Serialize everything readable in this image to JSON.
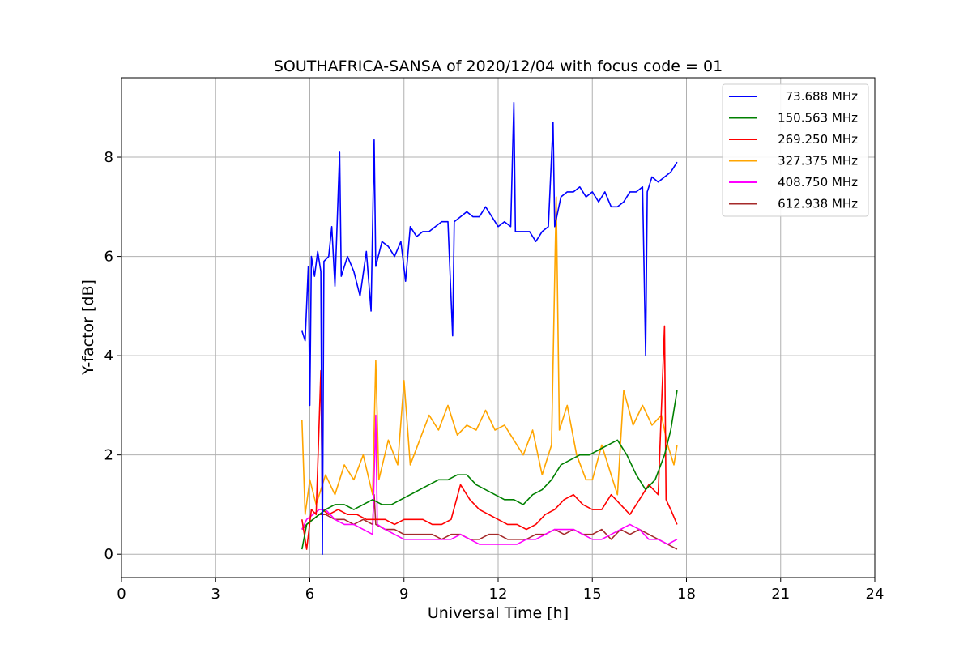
{
  "chart_data": {
    "type": "line",
    "title": "SOUTHAFRICA-SANSA of 2020/12/04 with focus code = 01",
    "xlabel": "Universal Time [h]",
    "ylabel": "Y-factor [dB]",
    "xlim": [
      0,
      24
    ],
    "ylim": [
      -0.47,
      9.6
    ],
    "xticks": [
      0,
      3,
      6,
      9,
      12,
      15,
      18,
      21,
      24
    ],
    "yticks": [
      0,
      2,
      4,
      6,
      8
    ],
    "grid": true,
    "legend_position": "top-right",
    "series": [
      {
        "name": "73.688 MHz",
        "color": "#0000ff",
        "points": [
          [
            5.75,
            4.5
          ],
          [
            5.85,
            4.3
          ],
          [
            5.95,
            5.8
          ],
          [
            6.0,
            3.0
          ],
          [
            6.05,
            6.0
          ],
          [
            6.15,
            5.6
          ],
          [
            6.25,
            6.1
          ],
          [
            6.35,
            5.7
          ],
          [
            6.4,
            0.0
          ],
          [
            6.45,
            5.9
          ],
          [
            6.6,
            6.0
          ],
          [
            6.7,
            6.6
          ],
          [
            6.8,
            5.4
          ],
          [
            6.95,
            8.1
          ],
          [
            7.0,
            5.6
          ],
          [
            7.2,
            6.0
          ],
          [
            7.4,
            5.7
          ],
          [
            7.6,
            5.2
          ],
          [
            7.8,
            6.1
          ],
          [
            7.95,
            4.9
          ],
          [
            8.05,
            8.35
          ],
          [
            8.1,
            5.8
          ],
          [
            8.3,
            6.3
          ],
          [
            8.5,
            6.2
          ],
          [
            8.7,
            6.0
          ],
          [
            8.9,
            6.3
          ],
          [
            9.05,
            5.5
          ],
          [
            9.2,
            6.6
          ],
          [
            9.4,
            6.4
          ],
          [
            9.6,
            6.5
          ],
          [
            9.8,
            6.5
          ],
          [
            10.0,
            6.6
          ],
          [
            10.2,
            6.7
          ],
          [
            10.4,
            6.7
          ],
          [
            10.55,
            4.4
          ],
          [
            10.6,
            6.7
          ],
          [
            10.8,
            6.8
          ],
          [
            11.0,
            6.9
          ],
          [
            11.2,
            6.8
          ],
          [
            11.4,
            6.8
          ],
          [
            11.6,
            7.0
          ],
          [
            11.8,
            6.8
          ],
          [
            12.0,
            6.6
          ],
          [
            12.2,
            6.7
          ],
          [
            12.4,
            6.6
          ],
          [
            12.5,
            9.1
          ],
          [
            12.55,
            6.5
          ],
          [
            12.8,
            6.5
          ],
          [
            13.0,
            6.5
          ],
          [
            13.2,
            6.3
          ],
          [
            13.4,
            6.5
          ],
          [
            13.6,
            6.6
          ],
          [
            13.75,
            8.7
          ],
          [
            13.8,
            6.6
          ],
          [
            14.0,
            7.2
          ],
          [
            14.2,
            7.3
          ],
          [
            14.4,
            7.3
          ],
          [
            14.6,
            7.4
          ],
          [
            14.8,
            7.2
          ],
          [
            15.0,
            7.3
          ],
          [
            15.2,
            7.1
          ],
          [
            15.4,
            7.3
          ],
          [
            15.6,
            7.0
          ],
          [
            15.8,
            7.0
          ],
          [
            16.0,
            7.1
          ],
          [
            16.2,
            7.3
          ],
          [
            16.4,
            7.3
          ],
          [
            16.6,
            7.4
          ],
          [
            16.7,
            4.0
          ],
          [
            16.75,
            7.3
          ],
          [
            16.9,
            7.6
          ],
          [
            17.1,
            7.5
          ],
          [
            17.3,
            7.6
          ],
          [
            17.5,
            7.7
          ],
          [
            17.7,
            7.9
          ]
        ]
      },
      {
        "name": "150.563 MHz",
        "color": "#008000",
        "points": [
          [
            5.75,
            0.1
          ],
          [
            5.9,
            0.6
          ],
          [
            6.1,
            0.7
          ],
          [
            6.3,
            0.8
          ],
          [
            6.5,
            0.9
          ],
          [
            6.8,
            1.0
          ],
          [
            7.1,
            1.0
          ],
          [
            7.4,
            0.9
          ],
          [
            7.7,
            1.0
          ],
          [
            8.0,
            1.1
          ],
          [
            8.3,
            1.0
          ],
          [
            8.6,
            1.0
          ],
          [
            8.9,
            1.1
          ],
          [
            9.2,
            1.2
          ],
          [
            9.5,
            1.3
          ],
          [
            9.8,
            1.4
          ],
          [
            10.1,
            1.5
          ],
          [
            10.4,
            1.5
          ],
          [
            10.7,
            1.6
          ],
          [
            11.0,
            1.6
          ],
          [
            11.3,
            1.4
          ],
          [
            11.6,
            1.3
          ],
          [
            11.9,
            1.2
          ],
          [
            12.2,
            1.1
          ],
          [
            12.5,
            1.1
          ],
          [
            12.8,
            1.0
          ],
          [
            13.1,
            1.2
          ],
          [
            13.4,
            1.3
          ],
          [
            13.7,
            1.5
          ],
          [
            14.0,
            1.8
          ],
          [
            14.3,
            1.9
          ],
          [
            14.6,
            2.0
          ],
          [
            14.9,
            2.0
          ],
          [
            15.2,
            2.1
          ],
          [
            15.5,
            2.2
          ],
          [
            15.8,
            2.3
          ],
          [
            16.1,
            2.0
          ],
          [
            16.4,
            1.6
          ],
          [
            16.7,
            1.3
          ],
          [
            17.0,
            1.5
          ],
          [
            17.3,
            2.0
          ],
          [
            17.5,
            2.5
          ],
          [
            17.7,
            3.3
          ]
        ]
      },
      {
        "name": "269.250 MHz",
        "color": "#ff0000",
        "points": [
          [
            5.75,
            0.7
          ],
          [
            5.9,
            0.1
          ],
          [
            6.05,
            0.9
          ],
          [
            6.2,
            0.8
          ],
          [
            6.35,
            3.7
          ],
          [
            6.4,
            0.9
          ],
          [
            6.6,
            0.8
          ],
          [
            6.9,
            0.9
          ],
          [
            7.2,
            0.8
          ],
          [
            7.5,
            0.8
          ],
          [
            7.8,
            0.7
          ],
          [
            8.1,
            0.7
          ],
          [
            8.4,
            0.7
          ],
          [
            8.7,
            0.6
          ],
          [
            9.0,
            0.7
          ],
          [
            9.3,
            0.7
          ],
          [
            9.6,
            0.7
          ],
          [
            9.9,
            0.6
          ],
          [
            10.2,
            0.6
          ],
          [
            10.5,
            0.7
          ],
          [
            10.8,
            1.4
          ],
          [
            11.1,
            1.1
          ],
          [
            11.4,
            0.9
          ],
          [
            11.7,
            0.8
          ],
          [
            12.0,
            0.7
          ],
          [
            12.3,
            0.6
          ],
          [
            12.6,
            0.6
          ],
          [
            12.9,
            0.5
          ],
          [
            13.2,
            0.6
          ],
          [
            13.5,
            0.8
          ],
          [
            13.8,
            0.9
          ],
          [
            14.1,
            1.1
          ],
          [
            14.4,
            1.2
          ],
          [
            14.7,
            1.0
          ],
          [
            15.0,
            0.9
          ],
          [
            15.3,
            0.9
          ],
          [
            15.6,
            1.2
          ],
          [
            15.9,
            1.0
          ],
          [
            16.2,
            0.8
          ],
          [
            16.5,
            1.1
          ],
          [
            16.8,
            1.4
          ],
          [
            17.1,
            1.2
          ],
          [
            17.3,
            4.6
          ],
          [
            17.35,
            1.1
          ],
          [
            17.5,
            0.9
          ],
          [
            17.7,
            0.6
          ]
        ]
      },
      {
        "name": "327.375 MHz",
        "color": "#ffa500",
        "points": [
          [
            5.75,
            2.7
          ],
          [
            5.85,
            0.8
          ],
          [
            6.0,
            1.5
          ],
          [
            6.2,
            1.0
          ],
          [
            6.5,
            1.6
          ],
          [
            6.8,
            1.2
          ],
          [
            7.1,
            1.8
          ],
          [
            7.4,
            1.5
          ],
          [
            7.7,
            2.0
          ],
          [
            8.0,
            1.2
          ],
          [
            8.1,
            3.9
          ],
          [
            8.2,
            1.5
          ],
          [
            8.5,
            2.3
          ],
          [
            8.8,
            1.8
          ],
          [
            9.0,
            3.5
          ],
          [
            9.2,
            1.8
          ],
          [
            9.5,
            2.3
          ],
          [
            9.8,
            2.8
          ],
          [
            10.1,
            2.5
          ],
          [
            10.4,
            3.0
          ],
          [
            10.7,
            2.4
          ],
          [
            11.0,
            2.6
          ],
          [
            11.3,
            2.5
          ],
          [
            11.6,
            2.9
          ],
          [
            11.9,
            2.5
          ],
          [
            12.2,
            2.6
          ],
          [
            12.5,
            2.3
          ],
          [
            12.8,
            2.0
          ],
          [
            13.1,
            2.5
          ],
          [
            13.4,
            1.6
          ],
          [
            13.7,
            2.2
          ],
          [
            13.85,
            7.2
          ],
          [
            13.95,
            2.5
          ],
          [
            14.2,
            3.0
          ],
          [
            14.5,
            2.0
          ],
          [
            14.8,
            1.5
          ],
          [
            15.0,
            1.5
          ],
          [
            15.3,
            2.2
          ],
          [
            15.6,
            1.6
          ],
          [
            15.8,
            1.2
          ],
          [
            16.0,
            3.3
          ],
          [
            16.3,
            2.6
          ],
          [
            16.6,
            3.0
          ],
          [
            16.9,
            2.6
          ],
          [
            17.2,
            2.8
          ],
          [
            17.4,
            2.2
          ],
          [
            17.6,
            1.8
          ],
          [
            17.7,
            2.2
          ]
        ]
      },
      {
        "name": "408.750 MHz",
        "color": "#ff00ff",
        "points": [
          [
            5.75,
            0.5
          ],
          [
            5.9,
            0.7
          ],
          [
            6.1,
            0.8
          ],
          [
            6.3,
            0.9
          ],
          [
            6.5,
            0.9
          ],
          [
            6.8,
            0.7
          ],
          [
            7.1,
            0.6
          ],
          [
            7.4,
            0.6
          ],
          [
            7.7,
            0.5
          ],
          [
            8.0,
            0.4
          ],
          [
            8.1,
            2.8
          ],
          [
            8.15,
            0.6
          ],
          [
            8.4,
            0.5
          ],
          [
            8.7,
            0.4
          ],
          [
            9.0,
            0.3
          ],
          [
            9.3,
            0.3
          ],
          [
            9.6,
            0.3
          ],
          [
            9.9,
            0.3
          ],
          [
            10.2,
            0.3
          ],
          [
            10.5,
            0.3
          ],
          [
            10.8,
            0.4
          ],
          [
            11.1,
            0.3
          ],
          [
            11.4,
            0.2
          ],
          [
            11.7,
            0.2
          ],
          [
            12.0,
            0.2
          ],
          [
            12.3,
            0.2
          ],
          [
            12.6,
            0.2
          ],
          [
            12.9,
            0.3
          ],
          [
            13.2,
            0.3
          ],
          [
            13.5,
            0.4
          ],
          [
            13.8,
            0.5
          ],
          [
            14.1,
            0.5
          ],
          [
            14.4,
            0.5
          ],
          [
            14.7,
            0.4
          ],
          [
            15.0,
            0.3
          ],
          [
            15.3,
            0.3
          ],
          [
            15.6,
            0.4
          ],
          [
            15.9,
            0.5
          ],
          [
            16.2,
            0.6
          ],
          [
            16.5,
            0.5
          ],
          [
            16.8,
            0.3
          ],
          [
            17.1,
            0.3
          ],
          [
            17.4,
            0.2
          ],
          [
            17.7,
            0.3
          ]
        ]
      },
      {
        "name": "612.938 MHz",
        "color": "#a52a2a",
        "points": [
          [
            5.75,
            0.5
          ],
          [
            5.9,
            0.6
          ],
          [
            6.1,
            0.7
          ],
          [
            6.3,
            0.8
          ],
          [
            6.5,
            0.8
          ],
          [
            6.8,
            0.7
          ],
          [
            7.1,
            0.7
          ],
          [
            7.4,
            0.6
          ],
          [
            7.7,
            0.7
          ],
          [
            8.0,
            0.6
          ],
          [
            8.05,
            1.2
          ],
          [
            8.1,
            0.6
          ],
          [
            8.4,
            0.5
          ],
          [
            8.7,
            0.5
          ],
          [
            9.0,
            0.4
          ],
          [
            9.3,
            0.4
          ],
          [
            9.6,
            0.4
          ],
          [
            9.9,
            0.4
          ],
          [
            10.2,
            0.3
          ],
          [
            10.5,
            0.4
          ],
          [
            10.8,
            0.4
          ],
          [
            11.1,
            0.3
          ],
          [
            11.4,
            0.3
          ],
          [
            11.7,
            0.4
          ],
          [
            12.0,
            0.4
          ],
          [
            12.3,
            0.3
          ],
          [
            12.6,
            0.3
          ],
          [
            12.9,
            0.3
          ],
          [
            13.2,
            0.4
          ],
          [
            13.5,
            0.4
          ],
          [
            13.8,
            0.5
          ],
          [
            14.1,
            0.4
          ],
          [
            14.4,
            0.5
          ],
          [
            14.7,
            0.4
          ],
          [
            15.0,
            0.4
          ],
          [
            15.3,
            0.5
          ],
          [
            15.6,
            0.3
          ],
          [
            15.9,
            0.5
          ],
          [
            16.2,
            0.4
          ],
          [
            16.5,
            0.5
          ],
          [
            16.8,
            0.4
          ],
          [
            17.1,
            0.3
          ],
          [
            17.4,
            0.2
          ],
          [
            17.7,
            0.1
          ]
        ]
      }
    ]
  }
}
